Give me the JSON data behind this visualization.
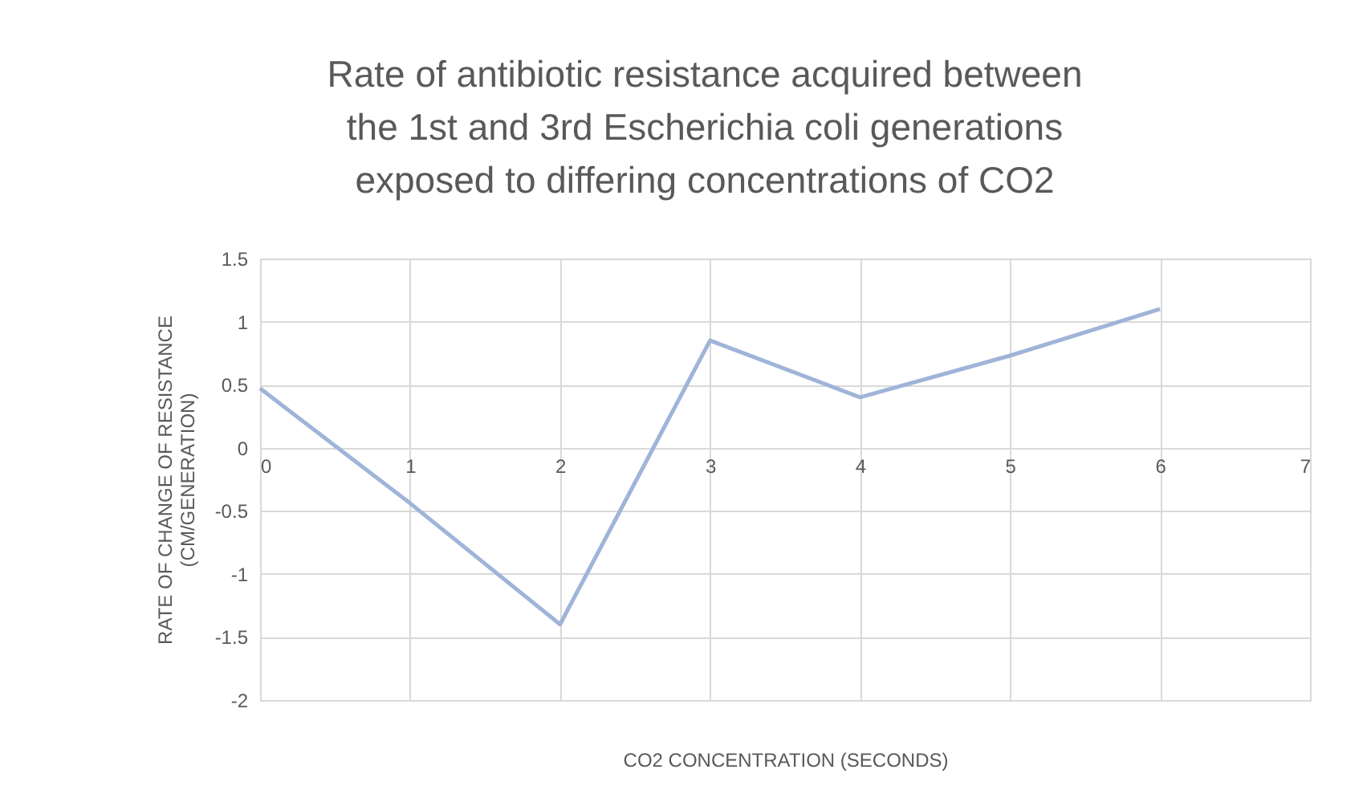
{
  "chart_data": {
    "type": "line",
    "title": "Rate of antibiotic resistance acquired between\nthe 1st and 3rd Escherichia coli generations\nexposed to differing concentrations of CO2",
    "xlabel": "CO2 CONCENTRATION (SECONDS)",
    "ylabel": "RATE OF CHANGE OF RESISTANCE\n(CM/GENERATION)",
    "x": [
      0,
      1,
      2,
      3,
      4,
      5,
      6
    ],
    "series": [
      {
        "color": "#9fb4d8",
        "values": [
          0.47,
          -0.44,
          -1.4,
          0.85,
          0.4,
          0.73,
          1.1
        ]
      }
    ],
    "xlim": [
      0,
      7
    ],
    "xticks": [
      0,
      1,
      2,
      3,
      4,
      5,
      6,
      7
    ],
    "ylim": [
      -2,
      1.5
    ],
    "yticks": [
      -2,
      -1.5,
      -1,
      -0.5,
      0,
      0.5,
      1,
      1.5
    ],
    "grid": true,
    "legend": false,
    "marker": "none",
    "line_style": "solid"
  }
}
